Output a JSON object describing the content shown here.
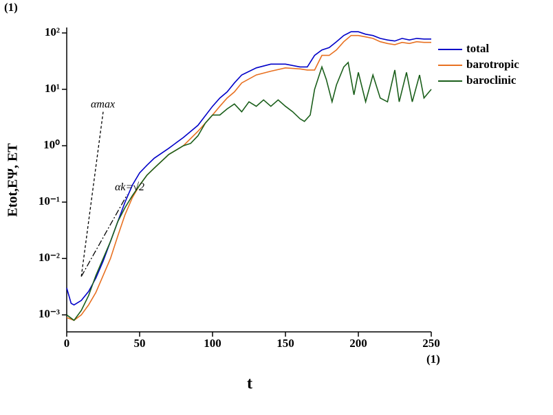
{
  "chart_data": {
    "type": "line",
    "y_unit": "(1)",
    "x_unit": "(1)",
    "x_label": "t",
    "y_label": "Etot,EΨ, ET",
    "log_y": true,
    "xlim": [
      0,
      250
    ],
    "xticks": [
      0,
      50,
      100,
      150,
      200,
      250
    ],
    "ylim": [
      0.0005,
      125
    ],
    "yticks": [
      {
        "value": 0.001,
        "label": "10⁻³"
      },
      {
        "value": 0.01,
        "label": "10⁻²"
      },
      {
        "value": 0.1,
        "label": "10⁻¹"
      },
      {
        "value": 1,
        "label": "10⁰"
      },
      {
        "value": 10,
        "label": "10¹"
      },
      {
        "value": 100,
        "label": "10²"
      }
    ],
    "legend": "right",
    "series": [
      {
        "name": "total",
        "color": "#0000c8",
        "x": [
          0,
          3,
          5,
          10,
          15,
          20,
          25,
          30,
          35,
          40,
          45,
          50,
          55,
          60,
          70,
          80,
          90,
          100,
          105,
          110,
          115,
          120,
          130,
          140,
          150,
          160,
          165,
          170,
          175,
          180,
          185,
          190,
          195,
          200,
          205,
          210,
          215,
          220,
          225,
          230,
          235,
          240,
          245,
          250
        ],
        "values": [
          0.003,
          0.0016,
          0.0015,
          0.0018,
          0.0026,
          0.0045,
          0.009,
          0.02,
          0.045,
          0.1,
          0.2,
          0.33,
          0.45,
          0.6,
          0.9,
          1.4,
          2.3,
          5,
          7,
          9,
          13,
          18,
          24,
          28,
          28,
          25,
          25,
          40,
          50,
          55,
          70,
          90,
          105,
          105,
          95,
          90,
          80,
          75,
          72,
          80,
          75,
          80,
          78,
          78
        ]
      },
      {
        "name": "barotropic",
        "color": "#e87020",
        "x": [
          0,
          5,
          10,
          15,
          20,
          25,
          30,
          35,
          40,
          45,
          50,
          55,
          60,
          70,
          80,
          90,
          100,
          105,
          110,
          115,
          120,
          130,
          140,
          150,
          160,
          165,
          170,
          175,
          180,
          185,
          190,
          195,
          200,
          205,
          210,
          215,
          220,
          225,
          230,
          235,
          240,
          245,
          250
        ],
        "values": [
          0.0009,
          0.0008,
          0.001,
          0.0015,
          0.0025,
          0.005,
          0.01,
          0.025,
          0.06,
          0.12,
          0.2,
          0.3,
          0.4,
          0.7,
          1.0,
          1.8,
          3.5,
          5,
          7,
          9,
          13,
          18,
          21,
          24,
          23,
          22,
          22,
          40,
          40,
          50,
          70,
          90,
          90,
          85,
          80,
          70,
          65,
          62,
          68,
          65,
          70,
          68,
          68
        ]
      },
      {
        "name": "baroclinic",
        "color": "#1a5e1a",
        "x": [
          0,
          5,
          10,
          15,
          20,
          25,
          30,
          35,
          40,
          45,
          50,
          55,
          60,
          70,
          80,
          85,
          90,
          95,
          100,
          105,
          110,
          115,
          120,
          125,
          130,
          135,
          140,
          145,
          150,
          155,
          160,
          163,
          167,
          170,
          175,
          178,
          182,
          185,
          190,
          193,
          197,
          200,
          205,
          210,
          215,
          220,
          225,
          228,
          233,
          237,
          242,
          245,
          250
        ],
        "values": [
          0.001,
          0.0008,
          0.0012,
          0.0022,
          0.005,
          0.01,
          0.02,
          0.045,
          0.08,
          0.13,
          0.2,
          0.3,
          0.4,
          0.7,
          1.0,
          1.1,
          1.5,
          2.5,
          3.5,
          3.5,
          4.5,
          5.5,
          4,
          6,
          5,
          6.5,
          5,
          6.5,
          5,
          4,
          3,
          2.7,
          3.5,
          10,
          25,
          15,
          6,
          12,
          25,
          30,
          8,
          20,
          6,
          18,
          7,
          6,
          22,
          6,
          20,
          6,
          18,
          7,
          10
        ]
      }
    ],
    "annotations": [
      {
        "text": "αmax",
        "x": [
          10,
          25
        ],
        "y": [
          0.0048,
          4
        ],
        "dash": "4 3"
      },
      {
        "text": "αk=√2",
        "x": [
          10,
          41.5
        ],
        "y": [
          0.0048,
          0.136
        ],
        "dash": "9 3 2 3"
      }
    ]
  }
}
